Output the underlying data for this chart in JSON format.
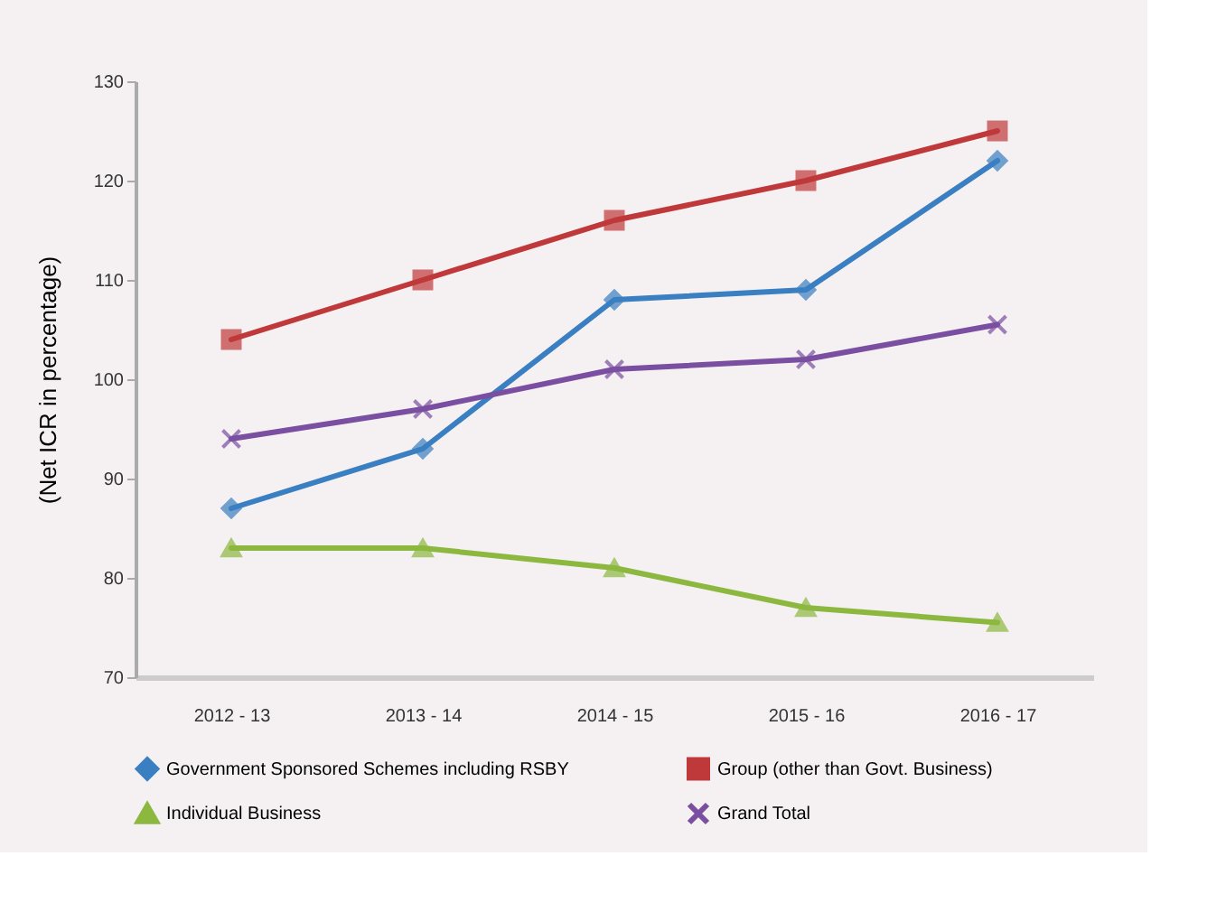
{
  "chart_data": {
    "type": "line",
    "ylabel": "(Net ICR in percentage)",
    "categories": [
      "2012 - 13",
      "2013 - 14",
      "2014 - 15",
      "2015 - 16",
      "2016 - 17"
    ],
    "series": [
      {
        "name": "Government Sponsored Schemes including RSBY",
        "color": "#3a7fc1",
        "marker": "diamond",
        "values": [
          87,
          93,
          108,
          109,
          122
        ]
      },
      {
        "name": "Group (other than Govt. Business)",
        "color": "#c0393a",
        "marker": "square",
        "values": [
          104,
          110,
          116,
          120,
          125
        ]
      },
      {
        "name": "Individual Business",
        "color": "#8db83f",
        "marker": "triangle",
        "values": [
          83,
          83,
          81,
          77,
          75.5
        ]
      },
      {
        "name": "Grand Total",
        "color": "#7a4ea0",
        "marker": "cross",
        "values": [
          94,
          97,
          101,
          102,
          105.5
        ]
      }
    ],
    "ylim": [
      70,
      130
    ],
    "yticks": [
      70,
      80,
      90,
      100,
      110,
      120,
      130
    ],
    "grid": false,
    "legend": "bottom",
    "line_style": "solid"
  }
}
